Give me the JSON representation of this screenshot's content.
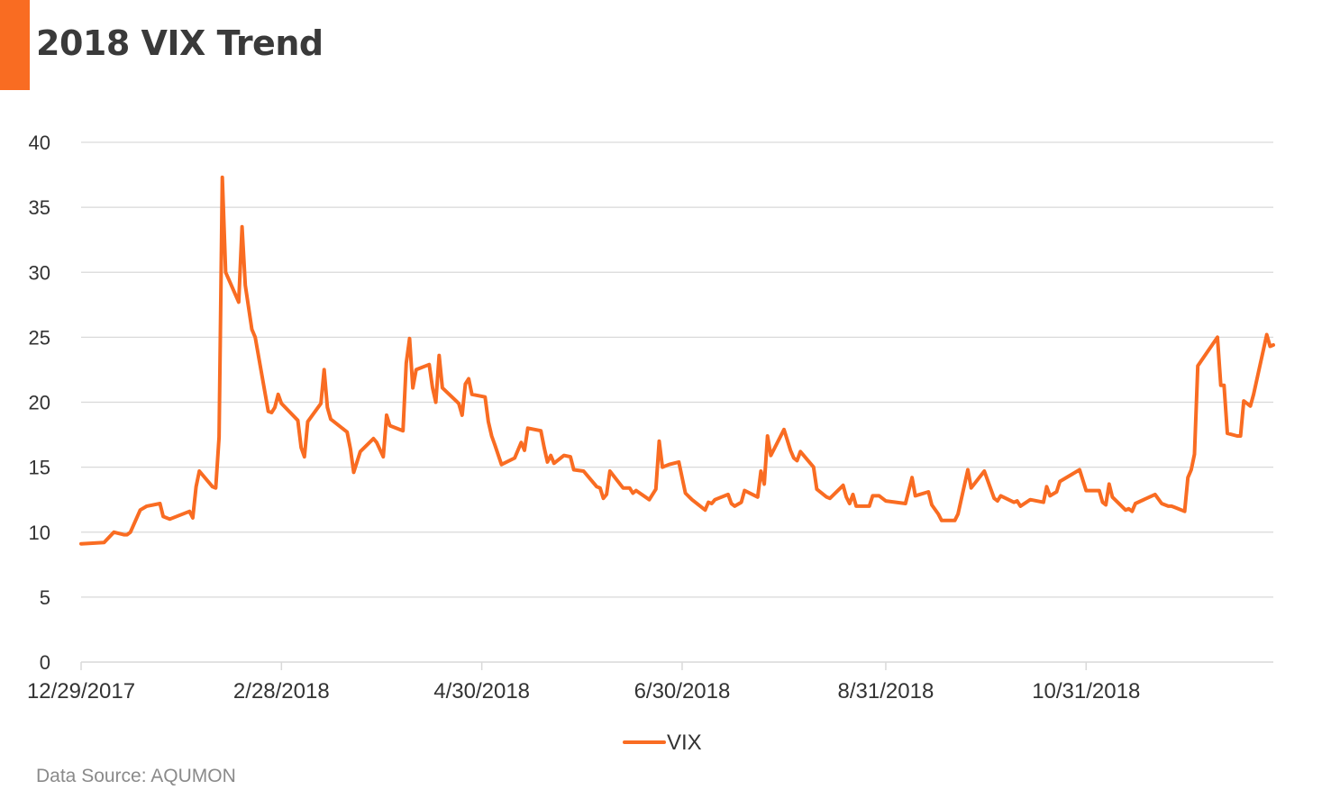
{
  "title": "2018 VIX Trend",
  "source": "Data Source: AQUMON",
  "colors": {
    "accent": "#f96c22",
    "line": "#f96c22",
    "grid": "#d9d9d9",
    "axis_text": "#333333",
    "source_text": "#8a8a8a"
  },
  "chart_data": {
    "type": "line",
    "title": "2018 VIX Trend",
    "xlabel": "",
    "ylabel": "",
    "ylim": [
      0,
      40
    ],
    "yticks": [
      "0",
      "5",
      "10",
      "15",
      "20",
      "25",
      "30",
      "35",
      "40"
    ],
    "xtick_labels": [
      {
        "label": "12/29/2017",
        "date": "2017-12-29"
      },
      {
        "label": "2/28/2018",
        "date": "2018-02-28"
      },
      {
        "label": "4/30/2018",
        "date": "2018-04-30"
      },
      {
        "label": "6/30/2018",
        "date": "2018-06-30"
      },
      {
        "label": "8/31/2018",
        "date": "2018-08-31"
      },
      {
        "label": "10/31/2018",
        "date": "2018-10-31"
      }
    ],
    "xlim": [
      "2017-12-29",
      "2018-12-27"
    ],
    "grid": true,
    "legend": "bottom-center",
    "series": [
      {
        "name": "VIX",
        "points": [
          [
            "2017-12-29",
            9.1
          ],
          [
            "2018-01-05",
            9.2
          ],
          [
            "2018-01-08",
            10.0
          ],
          [
            "2018-01-11",
            9.8
          ],
          [
            "2018-01-12",
            9.8
          ],
          [
            "2018-01-13",
            10.0
          ],
          [
            "2018-01-16",
            11.7
          ],
          [
            "2018-01-18",
            12.0
          ],
          [
            "2018-01-22",
            12.2
          ],
          [
            "2018-01-23",
            11.2
          ],
          [
            "2018-01-25",
            11.0
          ],
          [
            "2018-01-31",
            11.6
          ],
          [
            "2018-02-01",
            11.1
          ],
          [
            "2018-02-02",
            13.5
          ],
          [
            "2018-02-03",
            14.7
          ],
          [
            "2018-02-07",
            13.5
          ],
          [
            "2018-02-08",
            13.4
          ],
          [
            "2018-02-09",
            17.3
          ],
          [
            "2018-02-10",
            37.3
          ],
          [
            "2018-02-11",
            30.0
          ],
          [
            "2018-02-15",
            27.7
          ],
          [
            "2018-02-16",
            33.5
          ],
          [
            "2018-02-17",
            29.0
          ],
          [
            "2018-02-19",
            25.6
          ],
          [
            "2018-02-20",
            25.0
          ],
          [
            "2018-02-24",
            19.3
          ],
          [
            "2018-02-25",
            19.2
          ],
          [
            "2018-02-26",
            19.6
          ],
          [
            "2018-02-27",
            20.6
          ],
          [
            "2018-02-28",
            19.9
          ],
          [
            "2018-03-05",
            18.6
          ],
          [
            "2018-03-06",
            16.5
          ],
          [
            "2018-03-07",
            15.8
          ],
          [
            "2018-03-08",
            18.5
          ],
          [
            "2018-03-12",
            19.9
          ],
          [
            "2018-03-13",
            22.5
          ],
          [
            "2018-03-14",
            19.6
          ],
          [
            "2018-03-15",
            18.7
          ],
          [
            "2018-03-19",
            17.9
          ],
          [
            "2018-03-20",
            17.7
          ],
          [
            "2018-03-21",
            16.4
          ],
          [
            "2018-03-22",
            14.6
          ],
          [
            "2018-03-24",
            16.2
          ],
          [
            "2018-03-28",
            17.2
          ],
          [
            "2018-03-29",
            16.9
          ],
          [
            "2018-03-31",
            15.8
          ],
          [
            "2018-04-01",
            19.0
          ],
          [
            "2018-04-02",
            18.2
          ],
          [
            "2018-04-06",
            17.8
          ],
          [
            "2018-04-07",
            23.0
          ],
          [
            "2018-04-08",
            24.9
          ],
          [
            "2018-04-09",
            21.1
          ],
          [
            "2018-04-10",
            22.5
          ],
          [
            "2018-04-14",
            22.9
          ],
          [
            "2018-04-15",
            21.1
          ],
          [
            "2018-04-16",
            20.0
          ],
          [
            "2018-04-17",
            23.6
          ],
          [
            "2018-04-18",
            21.1
          ],
          [
            "2018-04-23",
            19.9
          ],
          [
            "2018-04-24",
            19.0
          ],
          [
            "2018-04-25",
            21.4
          ],
          [
            "2018-04-26",
            21.8
          ],
          [
            "2018-04-27",
            20.6
          ],
          [
            "2018-05-01",
            20.4
          ],
          [
            "2018-05-02",
            18.5
          ],
          [
            "2018-05-03",
            17.4
          ],
          [
            "2018-05-04",
            16.7
          ],
          [
            "2018-05-06",
            15.2
          ],
          [
            "2018-05-10",
            15.7
          ],
          [
            "2018-05-12",
            16.9
          ],
          [
            "2018-05-13",
            16.3
          ],
          [
            "2018-05-14",
            18.0
          ],
          [
            "2018-05-18",
            17.8
          ],
          [
            "2018-05-19",
            16.5
          ],
          [
            "2018-05-20",
            15.4
          ],
          [
            "2018-05-21",
            15.9
          ],
          [
            "2018-05-22",
            15.3
          ],
          [
            "2018-05-25",
            15.9
          ],
          [
            "2018-05-27",
            15.8
          ],
          [
            "2018-05-28",
            14.8
          ],
          [
            "2018-05-31",
            14.7
          ],
          [
            "2018-06-04",
            13.5
          ],
          [
            "2018-06-05",
            13.4
          ],
          [
            "2018-06-06",
            12.6
          ],
          [
            "2018-06-07",
            12.9
          ],
          [
            "2018-06-08",
            14.7
          ],
          [
            "2018-06-12",
            13.4
          ],
          [
            "2018-06-14",
            13.4
          ],
          [
            "2018-06-15",
            13.0
          ],
          [
            "2018-06-16",
            13.2
          ],
          [
            "2018-06-20",
            12.5
          ],
          [
            "2018-06-22",
            13.3
          ],
          [
            "2018-06-23",
            17.0
          ],
          [
            "2018-06-24",
            15.0
          ],
          [
            "2018-06-26",
            15.2
          ],
          [
            "2018-06-29",
            15.4
          ],
          [
            "2018-07-01",
            13.0
          ],
          [
            "2018-07-03",
            12.5
          ],
          [
            "2018-07-07",
            11.7
          ],
          [
            "2018-07-08",
            12.3
          ],
          [
            "2018-07-09",
            12.2
          ],
          [
            "2018-07-10",
            12.5
          ],
          [
            "2018-07-14",
            12.9
          ],
          [
            "2018-07-15",
            12.2
          ],
          [
            "2018-07-16",
            12.0
          ],
          [
            "2018-07-18",
            12.3
          ],
          [
            "2018-07-19",
            13.2
          ],
          [
            "2018-07-23",
            12.7
          ],
          [
            "2018-07-24",
            14.7
          ],
          [
            "2018-07-25",
            13.7
          ],
          [
            "2018-07-26",
            17.4
          ],
          [
            "2018-07-27",
            15.9
          ],
          [
            "2018-07-31",
            17.9
          ],
          [
            "2018-08-02",
            16.3
          ],
          [
            "2018-08-03",
            15.7
          ],
          [
            "2018-08-04",
            15.5
          ],
          [
            "2018-08-05",
            16.2
          ],
          [
            "2018-08-09",
            15.0
          ],
          [
            "2018-08-10",
            13.3
          ],
          [
            "2018-08-13",
            12.7
          ],
          [
            "2018-08-14",
            12.6
          ],
          [
            "2018-08-18",
            13.6
          ],
          [
            "2018-08-19",
            12.7
          ],
          [
            "2018-08-20",
            12.2
          ],
          [
            "2018-08-21",
            12.9
          ],
          [
            "2018-08-22",
            12.0
          ],
          [
            "2018-08-23",
            12.0
          ],
          [
            "2018-08-26",
            12.0
          ],
          [
            "2018-08-27",
            12.8
          ],
          [
            "2018-08-29",
            12.8
          ],
          [
            "2018-08-31",
            12.4
          ],
          [
            "2018-09-06",
            12.2
          ],
          [
            "2018-09-08",
            14.2
          ],
          [
            "2018-09-09",
            12.8
          ],
          [
            "2018-09-13",
            13.1
          ],
          [
            "2018-09-14",
            12.1
          ],
          [
            "2018-09-16",
            11.4
          ],
          [
            "2018-09-17",
            10.9
          ],
          [
            "2018-09-21",
            10.9
          ],
          [
            "2018-09-22",
            11.4
          ],
          [
            "2018-09-25",
            14.8
          ],
          [
            "2018-09-26",
            13.4
          ],
          [
            "2018-09-30",
            14.7
          ],
          [
            "2018-10-03",
            12.6
          ],
          [
            "2018-10-04",
            12.4
          ],
          [
            "2018-10-05",
            12.8
          ],
          [
            "2018-10-09",
            12.3
          ],
          [
            "2018-10-10",
            12.4
          ],
          [
            "2018-10-11",
            12.0
          ],
          [
            "2018-10-14",
            12.5
          ],
          [
            "2018-10-18",
            12.3
          ],
          [
            "2018-10-19",
            13.5
          ],
          [
            "2018-10-20",
            12.8
          ],
          [
            "2018-10-22",
            13.1
          ],
          [
            "2018-10-23",
            13.9
          ],
          [
            "2018-10-29",
            14.8
          ],
          [
            "2018-10-31",
            13.2
          ],
          [
            "2018-11-04",
            13.2
          ],
          [
            "2018-11-05",
            12.3
          ],
          [
            "2018-11-06",
            12.1
          ],
          [
            "2018-11-07",
            13.7
          ],
          [
            "2018-11-08",
            12.7
          ],
          [
            "2018-11-12",
            11.7
          ],
          [
            "2018-11-13",
            11.8
          ],
          [
            "2018-11-14",
            11.6
          ],
          [
            "2018-11-15",
            12.2
          ],
          [
            "2018-11-21",
            12.9
          ],
          [
            "2018-11-23",
            12.2
          ],
          [
            "2018-11-25",
            12.0
          ],
          [
            "2018-11-26",
            12.0
          ],
          [
            "2018-11-27",
            11.9
          ],
          [
            "2018-11-30",
            11.6
          ],
          [
            "2018-12-01",
            14.2
          ],
          [
            "2018-12-02",
            14.8
          ],
          [
            "2018-12-03",
            16.0
          ],
          [
            "2018-12-04",
            22.8
          ],
          [
            "2018-12-10",
            25.0
          ],
          [
            "2018-12-11",
            21.3
          ],
          [
            "2018-12-12",
            21.3
          ],
          [
            "2018-12-13",
            17.6
          ],
          [
            "2018-12-16",
            17.4
          ],
          [
            "2018-12-17",
            17.4
          ],
          [
            "2018-12-18",
            20.1
          ],
          [
            "2018-12-20",
            19.7
          ],
          [
            "2018-12-21",
            20.6
          ],
          [
            "2018-12-25",
            25.2
          ],
          [
            "2018-12-26",
            24.3
          ],
          [
            "2018-12-27",
            24.4
          ]
        ]
      }
    ]
  }
}
